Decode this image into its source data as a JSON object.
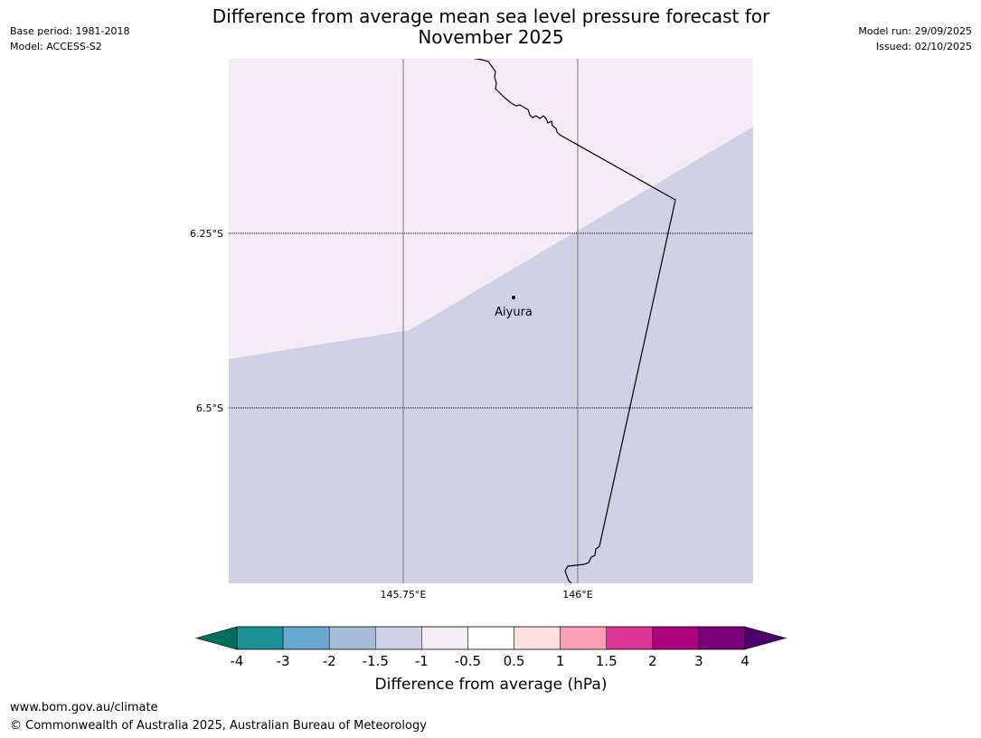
{
  "title": {
    "line1": "Difference from average mean sea level pressure forecast for",
    "line2": "November 2025"
  },
  "meta_left": {
    "base_period": "Base period: 1981-2018",
    "model": "Model: ACCESS-S2"
  },
  "meta_right": {
    "model_run": "Model run: 29/09/2025",
    "issued": "Issued: 02/10/2025"
  },
  "map": {
    "lat_labels": [
      "6.25°S",
      "6.5°S"
    ],
    "lon_labels": [
      "145.75°E",
      "146°E"
    ],
    "place": {
      "name": "Aiyura"
    },
    "regions": [
      {
        "label": "-0.5",
        "color": "#f4ecf5"
      },
      {
        "label": "-1",
        "color": "#d0d1e6"
      }
    ]
  },
  "colorbar": {
    "label": "Difference from average (hPa)",
    "ticks": [
      "-4",
      "-3",
      "-2",
      "-1.5",
      "-1",
      "-0.5",
      "0.5",
      "1",
      "1.5",
      "2",
      "3",
      "4"
    ],
    "under_color": "#006f5f",
    "over_color": "#4d006b",
    "colors": [
      "#1b9096",
      "#67a9cf",
      "#a6bbd7",
      "#d0d1e6",
      "#f4ecf5",
      "#ffffff",
      "#fde0dd",
      "#fa9fb5",
      "#dd3497",
      "#ae017e",
      "#7a0177"
    ]
  },
  "footer": {
    "url": "www.bom.gov.au/climate",
    "copyright": "© Commonwealth of Australia 2025, Australian Bureau of Meteorology"
  }
}
